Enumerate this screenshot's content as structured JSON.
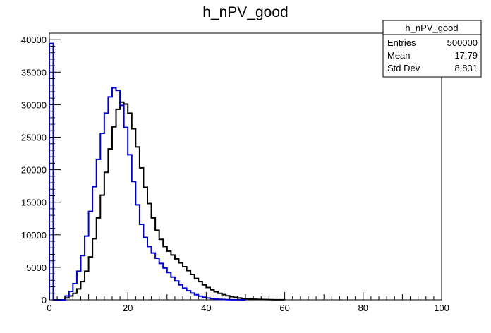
{
  "chart_data": {
    "type": "histogram",
    "title": "h_nPV_good",
    "xlabel": "",
    "ylabel": "",
    "xlim": [
      0,
      100
    ],
    "ylim": [
      0,
      41000
    ],
    "bin_width": 1,
    "x_ticks": [
      0,
      20,
      40,
      60,
      80,
      100
    ],
    "x_tick_labels": [
      "0",
      "20",
      "40",
      "60",
      "80",
      "100"
    ],
    "y_ticks": [
      0,
      5000,
      10000,
      15000,
      20000,
      25000,
      30000,
      35000,
      40000
    ],
    "y_tick_labels": [
      "0",
      "5000",
      "10000",
      "15000",
      "20000",
      "25000",
      "30000",
      "35000",
      "40000"
    ],
    "grid": false,
    "stats_box": {
      "title": "h_nPV_good",
      "rows": [
        {
          "label": "Entries",
          "value": "500000"
        },
        {
          "label": "Mean",
          "value": "17.79"
        },
        {
          "label": "Std Dev",
          "value": "8.831"
        }
      ]
    },
    "series": [
      {
        "color": "#000000",
        "values": [
          39400,
          0,
          0,
          0,
          300,
          600,
          1000,
          1700,
          2800,
          4400,
          6600,
          9400,
          12600,
          16100,
          19600,
          23200,
          26600,
          29300,
          30400,
          30100,
          28700,
          26300,
          23500,
          20300,
          17300,
          14800,
          12600,
          10700,
          9300,
          8200,
          7500,
          6900,
          6300,
          5700,
          5100,
          4500,
          3900,
          3300,
          2800,
          2300,
          1900,
          1550,
          1250,
          1000,
          800,
          630,
          490,
          380,
          290,
          220,
          170,
          125,
          95,
          70,
          50,
          35,
          25,
          18,
          12,
          8
        ]
      },
      {
        "color": "#0000cc",
        "values": [
          39400,
          0,
          0,
          0,
          600,
          1300,
          2500,
          4400,
          6800,
          9800,
          13600,
          17400,
          21600,
          25600,
          28700,
          31200,
          32600,
          32200,
          29900,
          26500,
          22300,
          18200,
          14600,
          11600,
          9600,
          8200,
          7200,
          6400,
          5600,
          4900,
          4200,
          3500,
          2900,
          2300,
          1800,
          1400,
          1050,
          780,
          570,
          400,
          280,
          190,
          120,
          80,
          50,
          30,
          20,
          12,
          8,
          5
        ]
      }
    ]
  }
}
